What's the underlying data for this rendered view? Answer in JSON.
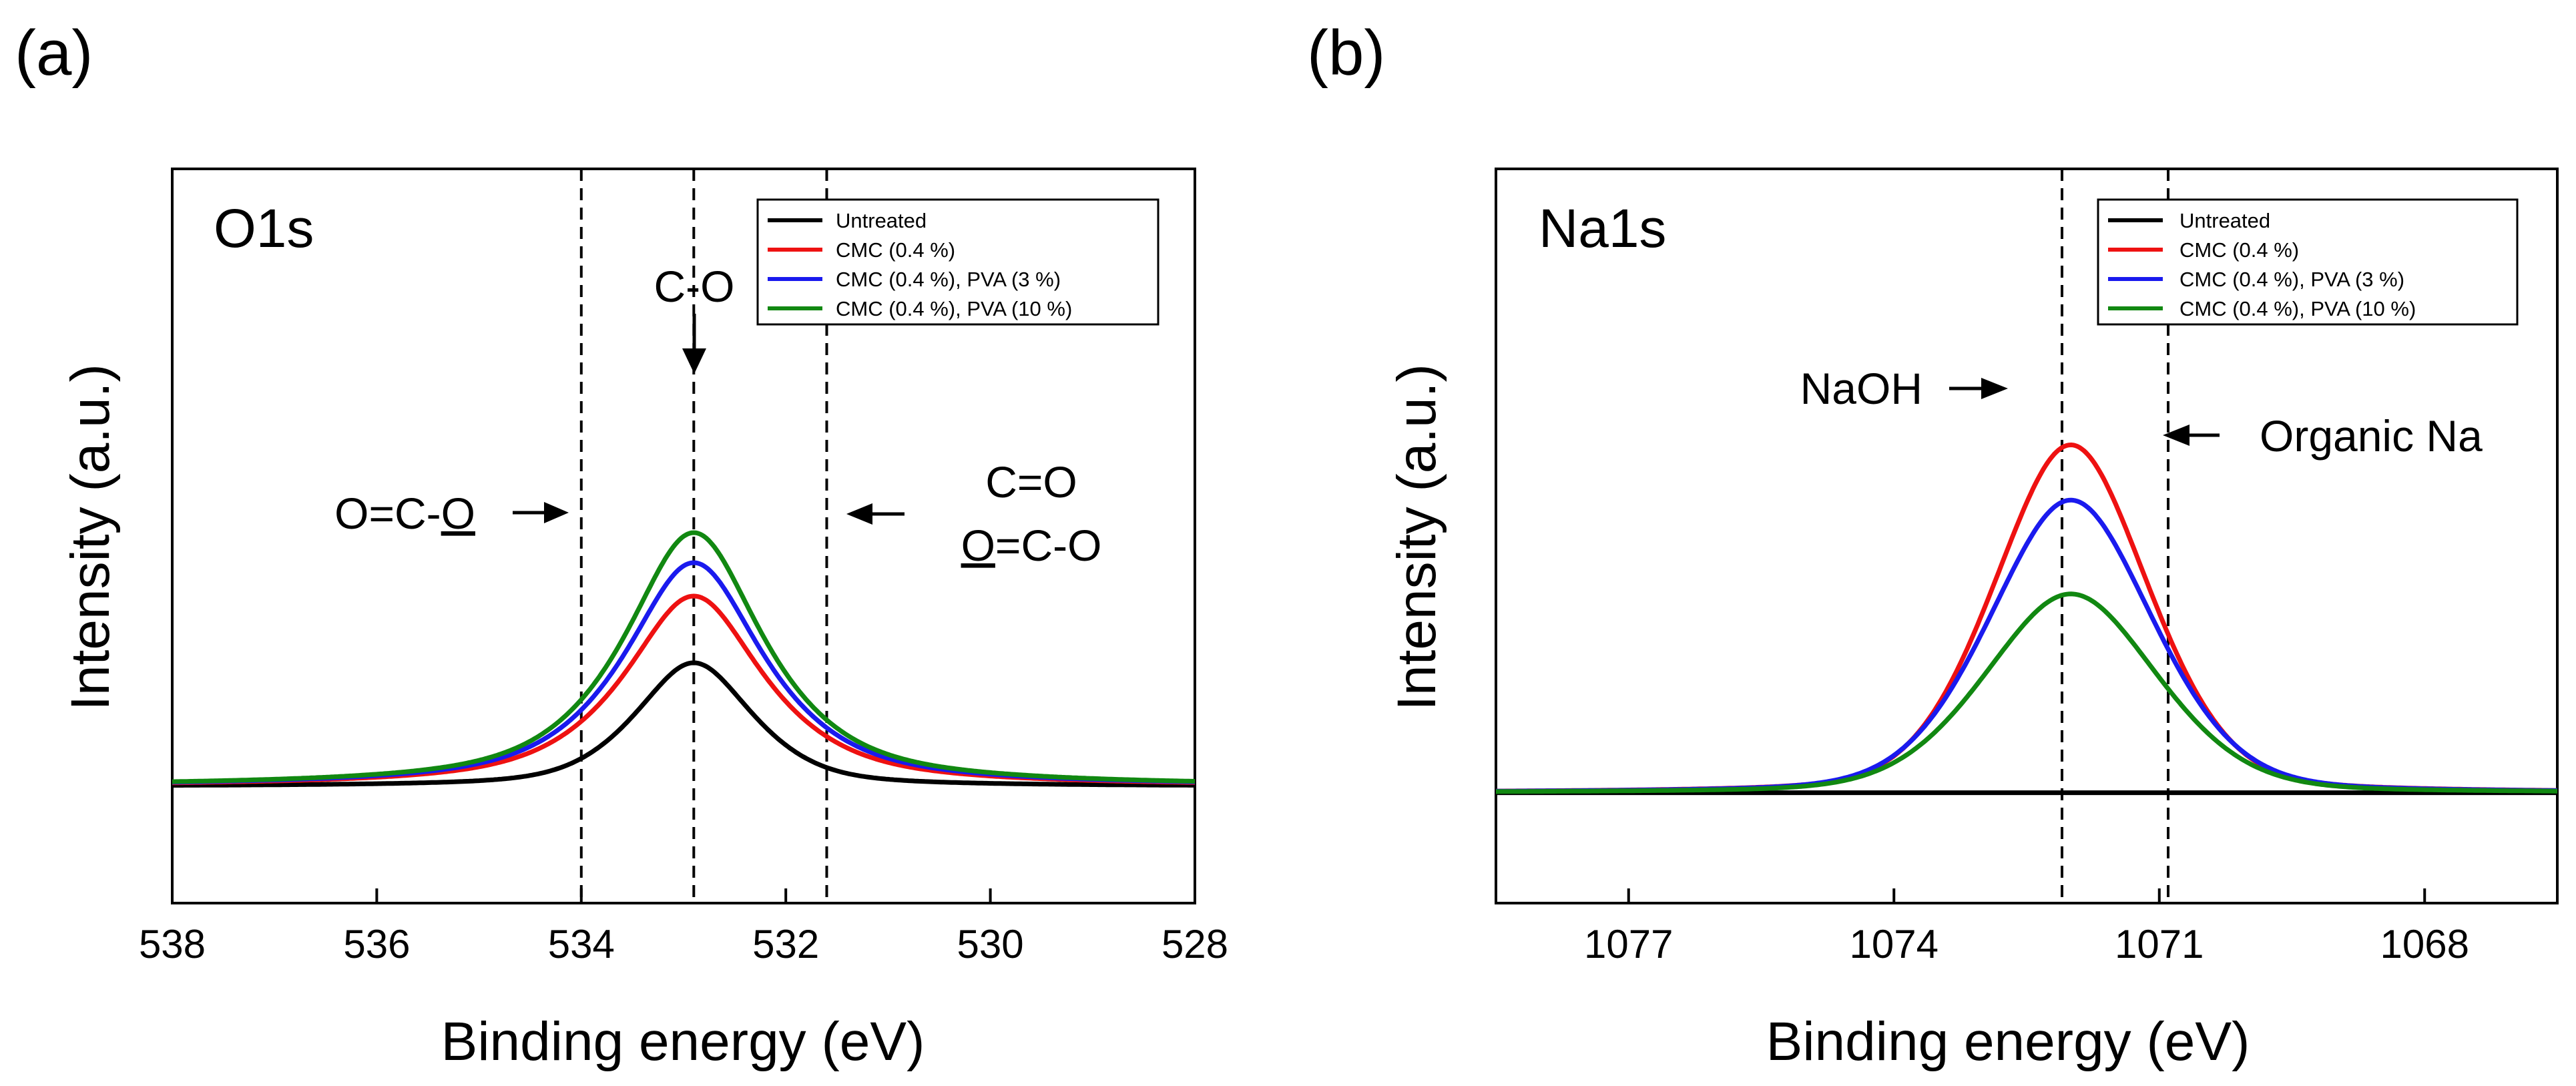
{
  "chart_data": [
    {
      "type": "line",
      "panel_label": "(a)",
      "title": "O1s",
      "xlabel": "Binding energy (eV)",
      "ylabel": "Intensity (a.u.)",
      "xlim": [
        538,
        528
      ],
      "x_reversed": true,
      "ylim": [
        -0.35,
        1.85
      ],
      "y_ticks_labeled": false,
      "grid": false,
      "x_ticks": [
        538,
        536,
        534,
        532,
        530,
        528
      ],
      "x_tick_labels": [
        "538",
        "536",
        "534",
        "532",
        "530",
        "528"
      ],
      "legend": {
        "position": "top-right",
        "entries": [
          "Untreated",
          "CMC (0.4 %)",
          "CMC (0.4 %), PVA (3 %)",
          "CMC (0.4 %), PVA (10 %)"
        ]
      },
      "series": [
        {
          "name": "Untreated",
          "color": "#000000",
          "peak_x": 532.9,
          "amplitude": 0.37,
          "sigma": 0.62,
          "gamma": 0.55
        },
        {
          "name": "CMC (0.4 %)",
          "color": "#ee1111",
          "peak_x": 532.9,
          "amplitude": 0.57,
          "sigma": 0.78,
          "gamma": 0.8
        },
        {
          "name": "CMC (0.4 %), PVA (3 %)",
          "color": "#1a1aee",
          "peak_x": 532.9,
          "amplitude": 0.67,
          "sigma": 0.78,
          "gamma": 0.8
        },
        {
          "name": "CMC (0.4 %), PVA (10 %)",
          "color": "#118811",
          "peak_x": 532.9,
          "amplitude": 0.76,
          "sigma": 0.78,
          "gamma": 0.8
        }
      ],
      "vlines": [
        534.0,
        532.9,
        531.6
      ],
      "annotations": [
        {
          "id": "co",
          "text": "C-O",
          "arrow": "down",
          "at_x": 532.9
        },
        {
          "id": "ocoo",
          "text_main": "O=C-",
          "text_underlined": "O",
          "arrow": "right",
          "at_x": 534.0
        },
        {
          "id": "ceo",
          "line1": "C=O",
          "line2_underlined": "O",
          "line2_rest": "=C-O",
          "arrow": "left",
          "at_x": 531.6
        }
      ]
    },
    {
      "type": "line",
      "panel_label": "(b)",
      "title": "Na1s",
      "xlabel": "Binding energy (eV)",
      "ylabel": "Intensity (a.u.)",
      "xlim": [
        1078.5,
        1066.5
      ],
      "x_reversed": true,
      "ylim": [
        -0.2,
        1.13
      ],
      "y_ticks_labeled": false,
      "grid": false,
      "x_ticks": [
        1077,
        1074,
        1071,
        1068
      ],
      "x_tick_labels": [
        "1077",
        "1074",
        "1071",
        "1068"
      ],
      "legend": {
        "position": "top-right",
        "entries": [
          "Untreated",
          "CMC (0.4 %)",
          "CMC (0.4 %), PVA (3 %)",
          "CMC (0.4 %), PVA (10 %)"
        ]
      },
      "series": [
        {
          "name": "Untreated",
          "color": "#000000",
          "flat": true
        },
        {
          "name": "CMC (0.4 %)",
          "color": "#ee1111",
          "peak_x": 1072.0,
          "amplitude": 0.63,
          "sigma": 0.9,
          "gamma": 0.25
        },
        {
          "name": "CMC (0.4 %), PVA (3 %)",
          "color": "#1a1aee",
          "peak_x": 1072.0,
          "amplitude": 0.53,
          "sigma": 0.95,
          "gamma": 0.25
        },
        {
          "name": "CMC (0.4 %), PVA (10 %)",
          "color": "#118811",
          "peak_x": 1072.0,
          "amplitude": 0.36,
          "sigma": 1.0,
          "gamma": 0.25
        }
      ],
      "vlines": [
        1072.1,
        1070.9
      ],
      "annotations": [
        {
          "id": "naoh",
          "text": "NaOH",
          "arrow": "right",
          "at_x": 1072.1
        },
        {
          "id": "orgna",
          "text": "Organic Na",
          "arrow": "left",
          "at_x": 1070.9
        }
      ]
    }
  ]
}
